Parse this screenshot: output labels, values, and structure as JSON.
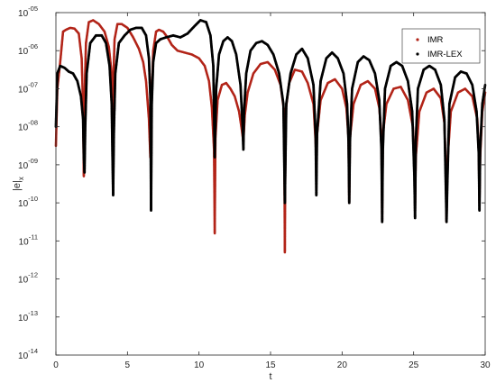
{
  "chart_data": {
    "type": "scatter",
    "title": "",
    "xlabel": "t",
    "ylabel": "|e|",
    "ylabel_sub": "x",
    "xlim": [
      0,
      30
    ],
    "ylim_log10": [
      -14,
      -5
    ],
    "yscale": "log",
    "grid": false,
    "legend_position": "top-right",
    "x_ticks": [
      {
        "value": 0,
        "label": "0"
      },
      {
        "value": 5,
        "label": "5"
      },
      {
        "value": 10,
        "label": "10"
      },
      {
        "value": 15,
        "label": "15"
      },
      {
        "value": 20,
        "label": "20"
      },
      {
        "value": 25,
        "label": "25"
      },
      {
        "value": 30,
        "label": "30"
      }
    ],
    "y_ticks": [
      {
        "value": -5,
        "base": "10",
        "exp": "-05"
      },
      {
        "value": -6,
        "base": "10",
        "exp": "-06"
      },
      {
        "value": -7,
        "base": "10",
        "exp": "-07"
      },
      {
        "value": -8,
        "base": "10",
        "exp": "-08"
      },
      {
        "value": -9,
        "base": "10",
        "exp": "-09"
      },
      {
        "value": -10,
        "base": "10",
        "exp": "-10"
      },
      {
        "value": -11,
        "base": "10",
        "exp": "-11"
      },
      {
        "value": -12,
        "base": "10",
        "exp": "-12"
      },
      {
        "value": -13,
        "base": "10",
        "exp": "-13"
      },
      {
        "value": -14,
        "base": "10",
        "exp": "-14"
      }
    ],
    "series": [
      {
        "name": "IMR",
        "color": "#b22418",
        "marker": "dot",
        "x": [
          0.0,
          0.1,
          0.3,
          0.5,
          0.7,
          1.0,
          1.3,
          1.6,
          1.8,
          1.9,
          1.95,
          2.0,
          2.1,
          2.3,
          2.6,
          3.0,
          3.4,
          3.7,
          3.9,
          3.95,
          4.0,
          4.1,
          4.3,
          4.6,
          5.0,
          5.4,
          5.8,
          6.1,
          6.3,
          6.5,
          6.6,
          6.7,
          6.8,
          7.0,
          7.2,
          7.5,
          7.8,
          8.1,
          8.5,
          9.0,
          9.5,
          10.0,
          10.4,
          10.7,
          10.9,
          11.05,
          11.1,
          11.15,
          11.3,
          11.6,
          11.9,
          12.2,
          12.5,
          12.8,
          13.0,
          13.1,
          13.2,
          13.4,
          13.8,
          14.3,
          14.8,
          15.3,
          15.7,
          15.95,
          16.0,
          16.05,
          16.3,
          16.7,
          17.2,
          17.6,
          18.0,
          18.15,
          18.2,
          18.25,
          18.5,
          19.0,
          19.5,
          20.0,
          20.3,
          20.45,
          20.5,
          20.55,
          20.8,
          21.3,
          21.8,
          22.3,
          22.6,
          22.75,
          22.8,
          22.85,
          23.1,
          23.6,
          24.1,
          24.6,
          24.95,
          25.05,
          25.1,
          25.15,
          25.4,
          25.9,
          26.4,
          26.9,
          27.15,
          27.25,
          27.3,
          27.35,
          27.6,
          28.1,
          28.6,
          29.1,
          29.45,
          29.55,
          29.6,
          29.65,
          29.8,
          30.0
        ],
        "y_log10": [
          -8.5,
          -7.0,
          -6.3,
          -5.5,
          -5.45,
          -5.4,
          -5.42,
          -5.55,
          -6.2,
          -7.5,
          -9.3,
          -7.3,
          -5.8,
          -5.25,
          -5.2,
          -5.3,
          -5.5,
          -5.9,
          -6.6,
          -8.2,
          -7.0,
          -5.7,
          -5.3,
          -5.3,
          -5.4,
          -5.65,
          -5.95,
          -6.3,
          -6.8,
          -7.8,
          -8.8,
          -7.2,
          -6.0,
          -5.5,
          -5.45,
          -5.5,
          -5.65,
          -5.85,
          -6.0,
          -6.05,
          -6.1,
          -6.2,
          -6.4,
          -6.8,
          -7.5,
          -8.6,
          -10.8,
          -8.3,
          -7.3,
          -6.9,
          -6.85,
          -7.0,
          -7.2,
          -7.6,
          -8.1,
          -8.4,
          -7.7,
          -7.1,
          -6.6,
          -6.35,
          -6.3,
          -6.5,
          -6.9,
          -7.6,
          -11.3,
          -7.6,
          -6.85,
          -6.5,
          -6.55,
          -6.85,
          -7.4,
          -8.4,
          -8.8,
          -8.2,
          -7.3,
          -6.85,
          -6.75,
          -7.0,
          -7.5,
          -8.3,
          -10.0,
          -8.3,
          -7.4,
          -6.9,
          -6.8,
          -7.0,
          -7.5,
          -8.2,
          -10.5,
          -8.2,
          -7.4,
          -7.0,
          -6.95,
          -7.3,
          -8.0,
          -8.8,
          -10.2,
          -8.8,
          -7.6,
          -7.1,
          -7.0,
          -7.25,
          -7.9,
          -9.0,
          -10.5,
          -9.0,
          -7.6,
          -7.1,
          -7.0,
          -7.2,
          -7.8,
          -8.6,
          -10.0,
          -8.8,
          -7.6,
          -7.1
        ]
      },
      {
        "name": "IMR-LEX",
        "color": "#000000",
        "marker": "dot",
        "x": [
          0.0,
          0.1,
          0.3,
          0.6,
          0.9,
          1.2,
          1.5,
          1.75,
          1.9,
          1.95,
          2.0,
          2.05,
          2.15,
          2.4,
          2.8,
          3.2,
          3.5,
          3.75,
          3.9,
          3.95,
          4.0,
          4.05,
          4.15,
          4.4,
          4.8,
          5.2,
          5.6,
          6.0,
          6.3,
          6.5,
          6.6,
          6.65,
          6.7,
          6.8,
          7.0,
          7.3,
          7.7,
          8.2,
          8.7,
          9.2,
          9.7,
          10.1,
          10.5,
          10.8,
          11.0,
          11.1,
          11.2,
          11.4,
          11.7,
          12.0,
          12.3,
          12.6,
          12.9,
          13.05,
          13.1,
          13.15,
          13.3,
          13.6,
          14.0,
          14.4,
          14.8,
          15.2,
          15.6,
          15.9,
          16.0,
          16.1,
          16.4,
          16.8,
          17.2,
          17.6,
          18.0,
          18.15,
          18.2,
          18.25,
          18.5,
          18.9,
          19.3,
          19.7,
          20.1,
          20.35,
          20.45,
          20.5,
          20.55,
          20.7,
          21.1,
          21.5,
          21.9,
          22.3,
          22.6,
          22.75,
          22.8,
          22.85,
          23.0,
          23.4,
          23.8,
          24.2,
          24.6,
          24.9,
          25.05,
          25.1,
          25.15,
          25.3,
          25.7,
          26.1,
          26.5,
          26.9,
          27.15,
          27.25,
          27.3,
          27.35,
          27.5,
          27.9,
          28.3,
          28.7,
          29.1,
          29.4,
          29.55,
          29.6,
          29.65,
          29.8,
          30.0
        ],
        "y_log10": [
          -8.0,
          -6.6,
          -6.4,
          -6.45,
          -6.55,
          -6.6,
          -6.8,
          -7.2,
          -7.8,
          -8.8,
          -9.2,
          -8.0,
          -6.6,
          -5.8,
          -5.6,
          -5.6,
          -5.8,
          -6.4,
          -7.4,
          -8.7,
          -9.8,
          -8.2,
          -6.6,
          -5.8,
          -5.6,
          -5.45,
          -5.4,
          -5.4,
          -5.6,
          -6.2,
          -7.2,
          -10.2,
          -7.4,
          -6.3,
          -5.8,
          -5.7,
          -5.65,
          -5.6,
          -5.65,
          -5.55,
          -5.35,
          -5.2,
          -5.25,
          -5.6,
          -6.4,
          -8.8,
          -7.0,
          -6.1,
          -5.75,
          -5.65,
          -5.75,
          -6.1,
          -6.9,
          -8.0,
          -8.6,
          -7.6,
          -6.6,
          -6.0,
          -5.8,
          -5.75,
          -5.85,
          -6.1,
          -6.6,
          -7.4,
          -10.0,
          -7.4,
          -6.6,
          -6.1,
          -5.95,
          -6.2,
          -6.9,
          -8.2,
          -9.8,
          -8.2,
          -6.8,
          -6.2,
          -6.05,
          -6.2,
          -6.6,
          -7.4,
          -8.4,
          -10.0,
          -8.4,
          -7.0,
          -6.3,
          -6.15,
          -6.25,
          -6.6,
          -7.3,
          -8.6,
          -10.5,
          -8.6,
          -7.0,
          -6.4,
          -6.3,
          -6.4,
          -6.8,
          -7.6,
          -9.3,
          -10.4,
          -8.4,
          -7.0,
          -6.5,
          -6.4,
          -6.5,
          -6.9,
          -7.8,
          -9.6,
          -10.5,
          -9.6,
          -7.4,
          -6.7,
          -6.55,
          -6.6,
          -6.9,
          -7.6,
          -8.7,
          -10.2,
          -8.6,
          -7.4,
          -6.9
        ]
      }
    ]
  }
}
